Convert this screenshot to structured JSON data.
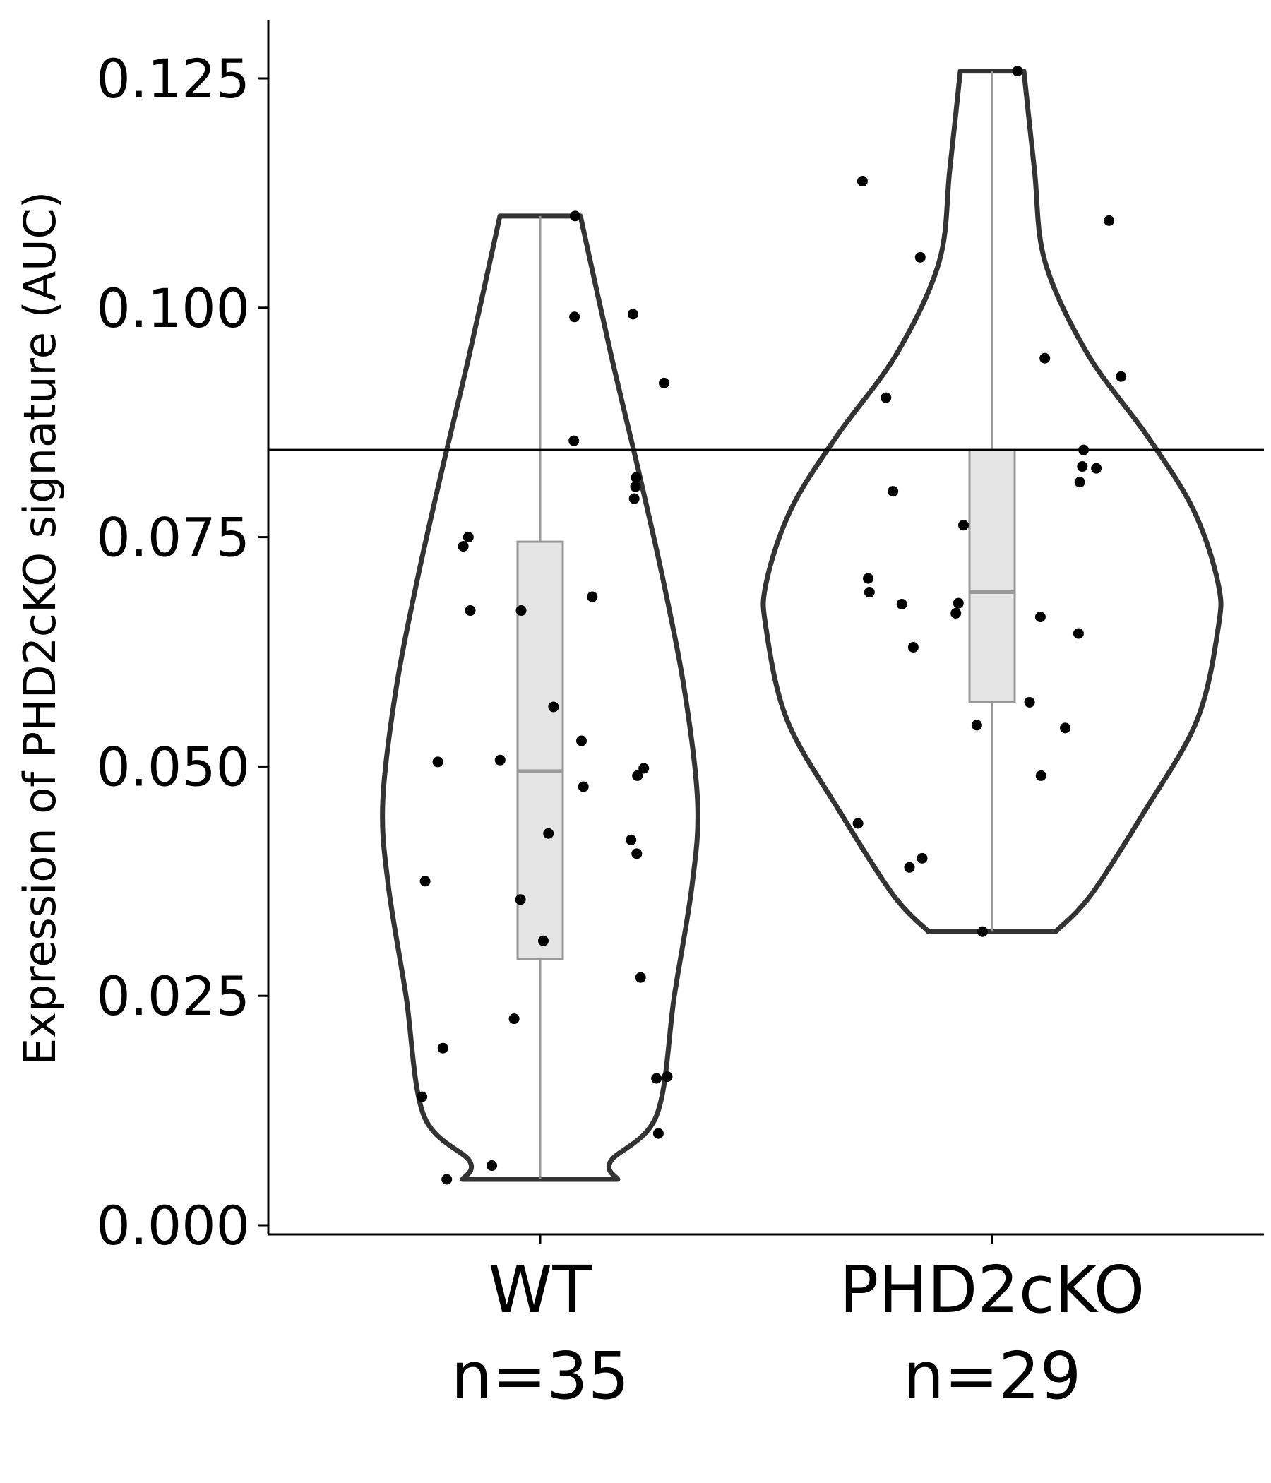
{
  "chart_data": {
    "type": "violin",
    "title": "",
    "xlabel": "",
    "ylabel": "Expression of PHD2cKO signature (AUC)",
    "ylim": [
      0,
      0.132
    ],
    "yticks": [
      "0.000",
      "0.025",
      "0.050",
      "0.075",
      "0.100",
      "0.125"
    ],
    "ytick_values": [
      0,
      0.025,
      0.05,
      0.075,
      0.1,
      0.125
    ],
    "grid": false,
    "reference_line": 0.0845,
    "colors": {
      "violin_stroke": "#333333",
      "box_fill": "#e5e5e5",
      "box_stroke": "#999999",
      "point": "#000000",
      "axis": "#000000"
    },
    "groups": [
      {
        "category": "WT",
        "n_label": "n=35",
        "box": {
          "min": 0.005,
          "q1": 0.029,
          "median": 0.0495,
          "q3": 0.0745,
          "max": 0.11
        },
        "points": [
          {
            "j": 0.55,
            "y": 0.11
          },
          {
            "j": 0.54,
            "y": 0.099
          },
          {
            "j": 0.53,
            "y": 0.0855
          },
          {
            "j": 1.46,
            "y": 0.0993
          },
          {
            "j": 1.95,
            "y": 0.0918
          },
          {
            "j": 1.51,
            "y": 0.0815
          },
          {
            "j": 1.5,
            "y": 0.0805
          },
          {
            "j": 1.48,
            "y": 0.0792
          },
          {
            "j": -1.21,
            "y": 0.074
          },
          {
            "j": -1.13,
            "y": 0.075
          },
          {
            "j": -1.1,
            "y": 0.067
          },
          {
            "j": -0.3,
            "y": 0.067
          },
          {
            "j": 0.82,
            "y": 0.0685
          },
          {
            "j": 0.21,
            "y": 0.0565
          },
          {
            "j": 0.65,
            "y": 0.0528
          },
          {
            "j": 0.68,
            "y": 0.0478
          },
          {
            "j": -1.61,
            "y": 0.0505
          },
          {
            "j": -0.63,
            "y": 0.0507
          },
          {
            "j": 1.63,
            "y": 0.0498
          },
          {
            "j": 1.53,
            "y": 0.049
          },
          {
            "j": 0.13,
            "y": 0.0427
          },
          {
            "j": 1.43,
            "y": 0.042
          },
          {
            "j": 1.52,
            "y": 0.0405
          },
          {
            "j": -1.81,
            "y": 0.0375
          },
          {
            "j": -0.31,
            "y": 0.0355
          },
          {
            "j": 0.05,
            "y": 0.031
          },
          {
            "j": 1.58,
            "y": 0.027
          },
          {
            "j": -0.41,
            "y": 0.0225
          },
          {
            "j": -1.53,
            "y": 0.0193
          },
          {
            "j": -1.86,
            "y": 0.014
          },
          {
            "j": 1.83,
            "y": 0.016
          },
          {
            "j": 2.0,
            "y": 0.0162
          },
          {
            "j": 1.86,
            "y": 0.01
          },
          {
            "j": -0.76,
            "y": 0.0065
          },
          {
            "j": -1.47,
            "y": 0.005
          }
        ]
      },
      {
        "category": "PHD2cKO",
        "n_label": "n=29",
        "box": {
          "min": 0.032,
          "q1": 0.057,
          "median": 0.069,
          "q3": 0.0845,
          "max": 0.1258
        },
        "points": [
          {
            "j": 0.4,
            "y": 0.1258
          },
          {
            "j": -2.04,
            "y": 0.1138
          },
          {
            "j": 1.84,
            "y": 0.1095
          },
          {
            "j": -1.13,
            "y": 0.1055
          },
          {
            "j": 0.83,
            "y": 0.0945
          },
          {
            "j": 2.03,
            "y": 0.0925
          },
          {
            "j": -1.67,
            "y": 0.0902
          },
          {
            "j": 1.44,
            "y": 0.0845
          },
          {
            "j": 1.42,
            "y": 0.0827
          },
          {
            "j": 1.64,
            "y": 0.0825
          },
          {
            "j": 1.38,
            "y": 0.081
          },
          {
            "j": -1.56,
            "y": 0.08
          },
          {
            "j": -0.45,
            "y": 0.0763
          },
          {
            "j": -1.95,
            "y": 0.0705
          },
          {
            "j": -1.93,
            "y": 0.069
          },
          {
            "j": -1.42,
            "y": 0.0677
          },
          {
            "j": -0.53,
            "y": 0.0678
          },
          {
            "j": -0.57,
            "y": 0.0667
          },
          {
            "j": 0.76,
            "y": 0.0663
          },
          {
            "j": 1.36,
            "y": 0.0645
          },
          {
            "j": -1.24,
            "y": 0.063
          },
          {
            "j": 0.59,
            "y": 0.057
          },
          {
            "j": -0.24,
            "y": 0.0545
          },
          {
            "j": 1.15,
            "y": 0.0542
          },
          {
            "j": 0.77,
            "y": 0.049
          },
          {
            "j": -2.11,
            "y": 0.0438
          },
          {
            "j": -1.1,
            "y": 0.04
          },
          {
            "j": -1.3,
            "y": 0.039
          },
          {
            "j": -0.15,
            "y": 0.032
          }
        ]
      }
    ]
  }
}
